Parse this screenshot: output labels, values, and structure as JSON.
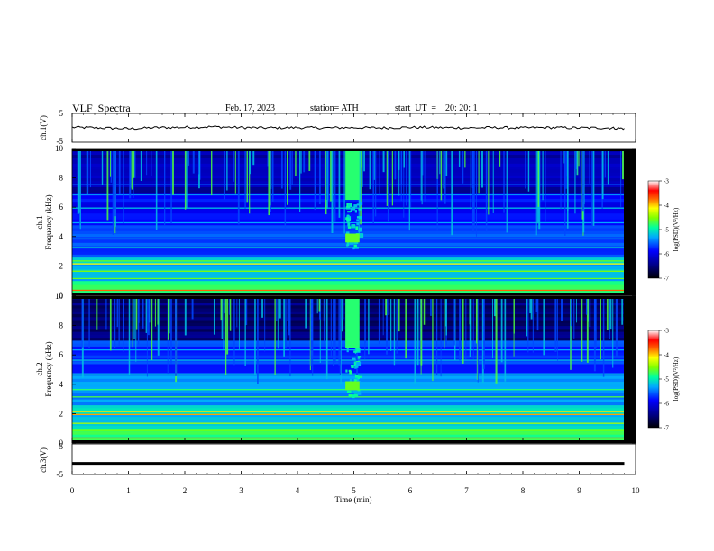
{
  "header": {
    "title": "VLF  Spectra",
    "date": "Feb. 17, 2023",
    "station": "station= ATH",
    "start": "start  UT  =    20: 20: 1"
  },
  "chart_data": [
    {
      "type": "line",
      "panel": "ch1-waveform",
      "ylabel": "ch.1(V)",
      "ylim": [
        -5,
        5
      ],
      "xlim": [
        0,
        10
      ],
      "yticks": [
        "5",
        "-5"
      ],
      "note_series": "noisy trace near 0 V",
      "x": [
        0,
        0.5,
        1.0,
        1.5,
        2.0,
        2.5,
        3.0,
        3.5,
        4.0,
        4.5,
        5.0,
        5.5,
        6.0,
        6.5,
        7.0,
        7.5,
        8.0,
        8.5,
        9.0,
        9.5,
        9.8
      ],
      "y": [
        0.2,
        0.0,
        -0.3,
        0.1,
        0.2,
        0.4,
        0.1,
        0.0,
        0.1,
        0.0,
        0.1,
        0.0,
        0.2,
        0.1,
        0.0,
        0.1,
        0.0,
        0.1,
        0.0,
        0.0,
        -0.2
      ]
    },
    {
      "type": "heatmap",
      "panel": "ch1-spectrogram",
      "ylabel": "ch.1\nFrequency  (kHz)",
      "ylim": [
        0,
        10
      ],
      "xlim": [
        0,
        9.8
      ],
      "yticks": [
        "0",
        "2",
        "4",
        "6",
        "8",
        "10"
      ],
      "colorbar_label": "log(PSD)(V²/Hz)",
      "colorbar_range": [
        -7,
        -3
      ],
      "colorbar_ticks": [
        "-3",
        "-4",
        "-5",
        "-6",
        "-7"
      ],
      "burst_time_min": [
        4.85,
        5.1
      ]
    },
    {
      "type": "heatmap",
      "panel": "ch2-spectrogram",
      "ylabel": "ch.2\nFrequency  (kHz)",
      "ylim": [
        0,
        10
      ],
      "xlim": [
        0,
        9.8
      ],
      "yticks": [
        "0",
        "2",
        "4",
        "6",
        "8",
        "10"
      ],
      "colorbar_label": "log(PSD)(V²/Hz)",
      "colorbar_range": [
        -7,
        -3
      ],
      "colorbar_ticks": [
        "-3",
        "-4",
        "-5",
        "-6",
        "-7"
      ],
      "burst_time_min": [
        4.85,
        5.1
      ]
    },
    {
      "type": "line",
      "panel": "ch3-waveform",
      "ylabel": "ch.3(V)",
      "ylim": [
        -5,
        5
      ],
      "xlim": [
        0,
        10
      ],
      "yticks": [
        "5",
        "-5"
      ],
      "x": [
        0,
        9.8
      ],
      "y": [
        -1.5,
        -1.5
      ]
    }
  ],
  "xaxis": {
    "label": "Time  (min)",
    "ticks": [
      "0",
      "1",
      "2",
      "3",
      "4",
      "5",
      "6",
      "7",
      "8",
      "9",
      "10"
    ]
  }
}
